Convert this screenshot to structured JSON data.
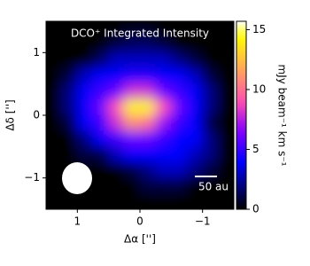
{
  "chart_data": {
    "type": "heatmap",
    "title": "DCO⁺ Integrated Intensity",
    "xlabel": "Δα ['']",
    "ylabel": "Δδ ['']",
    "colorbar_label": "mJy beam⁻¹ km s⁻¹",
    "colormap": "gnuplot2",
    "xlim": [
      1.5,
      -1.5
    ],
    "ylim": [
      -1.5,
      1.5
    ],
    "xticks": [
      {
        "value": 1,
        "label": "1"
      },
      {
        "value": 0,
        "label": "0"
      },
      {
        "value": -1,
        "label": "−1"
      }
    ],
    "yticks": [
      {
        "value": -1,
        "label": "−1"
      },
      {
        "value": 0,
        "label": "0"
      },
      {
        "value": 1,
        "label": "1"
      }
    ],
    "clim": [
      0,
      15.7
    ],
    "cticks": [
      0,
      5,
      10,
      15
    ],
    "scale_bar_label": "50 au",
    "z": [
      [
        0,
        0,
        0,
        0,
        0,
        0.5,
        0.5,
        0,
        0,
        0,
        0,
        0
      ],
      [
        0,
        0,
        0,
        0,
        1,
        1.5,
        1.5,
        1,
        0,
        0,
        0,
        0
      ],
      [
        0,
        0,
        0,
        1.5,
        3,
        3,
        3,
        3,
        2,
        1,
        0,
        0
      ],
      [
        0,
        1,
        3,
        4,
        4,
        4.5,
        4.5,
        4,
        4,
        3,
        1,
        0
      ],
      [
        0,
        2,
        4,
        5,
        6,
        8,
        8,
        6,
        5,
        4,
        2,
        0
      ],
      [
        0,
        2,
        4,
        6,
        9,
        14,
        14,
        9,
        6,
        4,
        2,
        0
      ],
      [
        0,
        1,
        4,
        5,
        8,
        11,
        10,
        7,
        5,
        4,
        1,
        0
      ],
      [
        0,
        0,
        2,
        4,
        5,
        6,
        6,
        5,
        4,
        4,
        2,
        0
      ],
      [
        0,
        0,
        1,
        1,
        3,
        4,
        4,
        4,
        4,
        3,
        2,
        0
      ],
      [
        0,
        0,
        0,
        0,
        0,
        1,
        2,
        3,
        3,
        2,
        1,
        0
      ],
      [
        0,
        0,
        0,
        0,
        0,
        0,
        1,
        1,
        1,
        0,
        0,
        0
      ],
      [
        0,
        0,
        0,
        0,
        0,
        0,
        0,
        0,
        0,
        0,
        0,
        0
      ]
    ]
  }
}
